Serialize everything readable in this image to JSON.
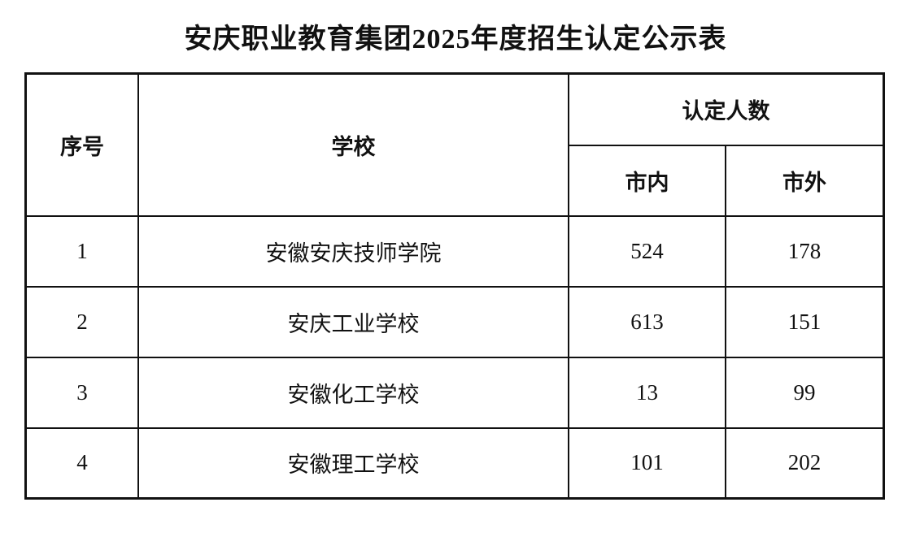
{
  "title": "安庆职业教育集团2025年度招生认定公示表",
  "headers": {
    "index": "序号",
    "school": "学校",
    "count_group": "认定人数",
    "in_city": "市内",
    "out_city": "市外"
  },
  "rows": [
    {
      "index": "1",
      "school": "安徽安庆技师学院",
      "in_city": "524",
      "out_city": "178"
    },
    {
      "index": "2",
      "school": "安庆工业学校",
      "in_city": "613",
      "out_city": "151"
    },
    {
      "index": "3",
      "school": "安徽化工学校",
      "in_city": "13",
      "out_city": "99"
    },
    {
      "index": "4",
      "school": "安徽理工学校",
      "in_city": "101",
      "out_city": "202"
    }
  ]
}
